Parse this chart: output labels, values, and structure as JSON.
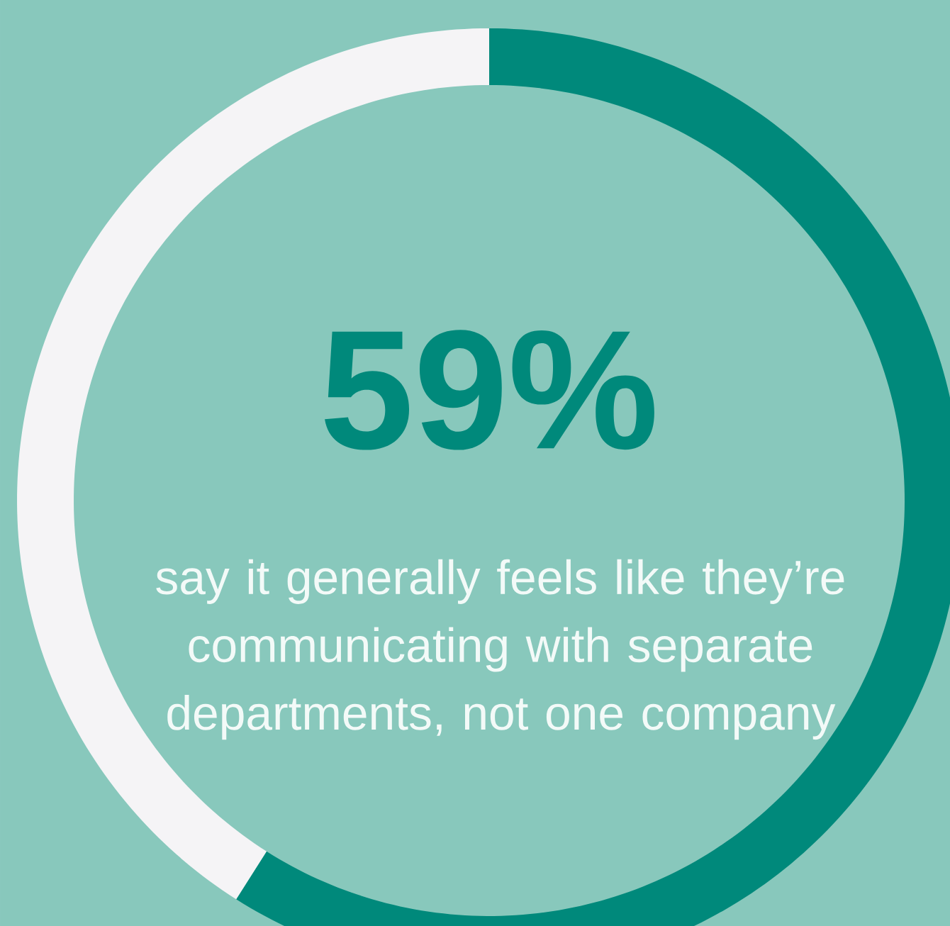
{
  "chart_data": {
    "type": "donut",
    "categories": [
      null,
      null
    ],
    "values": [
      59,
      41
    ],
    "colors": [
      "#00897b",
      "#f5f4f6"
    ],
    "value_labels": [
      "59%",
      null
    ],
    "annotations": [
      "say it generally feels like they’re communicating with separate departments, not one company"
    ]
  }
}
